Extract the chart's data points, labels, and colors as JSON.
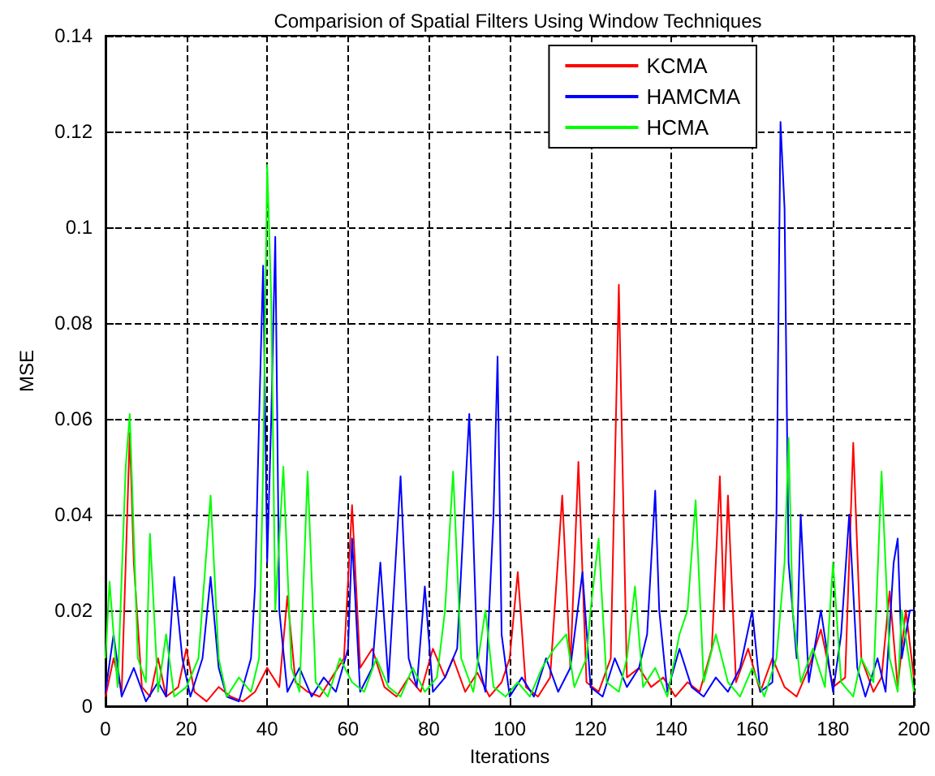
{
  "chart_data": {
    "type": "line",
    "title": "Comparision of Spatial Filters Using Window Techniques",
    "xlabel": "Iterations",
    "ylabel": "MSE",
    "xlim": [
      0,
      200
    ],
    "xticks": [
      0,
      20,
      40,
      60,
      80,
      100,
      120,
      140,
      160,
      180,
      200
    ],
    "ylim": [
      0,
      0.14
    ],
    "yticks": [
      0,
      0.02,
      0.04,
      0.06,
      0.08,
      0.1,
      0.12,
      0.14
    ],
    "grid": true,
    "legend": "top right",
    "line_style": "solid",
    "series": [
      {
        "name": "KCMA",
        "color": "#ff0000",
        "x": [
          0,
          2,
          4,
          6,
          7,
          9,
          11,
          13,
          15,
          18,
          20,
          22,
          25,
          28,
          31,
          34,
          37,
          40,
          43,
          45,
          47,
          50,
          53,
          56,
          59,
          61,
          63,
          66,
          69,
          72,
          75,
          78,
          81,
          84,
          86,
          89,
          92,
          95,
          98,
          100,
          102,
          104,
          107,
          110,
          113,
          115,
          117,
          119,
          122,
          125,
          127,
          129,
          132,
          135,
          138,
          141,
          144,
          147,
          150,
          152,
          153,
          154,
          156,
          159,
          162,
          165,
          168,
          171,
          174,
          177,
          180,
          183,
          185,
          187,
          190,
          192,
          194,
          196,
          198,
          200
        ],
        "values": [
          0.002,
          0.01,
          0.003,
          0.057,
          0.03,
          0.004,
          0.002,
          0.01,
          0.002,
          0.004,
          0.012,
          0.003,
          0.001,
          0.004,
          0.002,
          0.001,
          0.003,
          0.008,
          0.004,
          0.023,
          0.005,
          0.003,
          0.002,
          0.006,
          0.01,
          0.042,
          0.008,
          0.012,
          0.004,
          0.002,
          0.006,
          0.003,
          0.012,
          0.006,
          0.01,
          0.003,
          0.007,
          0.002,
          0.005,
          0.01,
          0.028,
          0.004,
          0.002,
          0.006,
          0.044,
          0.008,
          0.051,
          0.005,
          0.003,
          0.01,
          0.088,
          0.006,
          0.008,
          0.004,
          0.006,
          0.002,
          0.005,
          0.003,
          0.012,
          0.048,
          0.02,
          0.044,
          0.005,
          0.012,
          0.003,
          0.01,
          0.004,
          0.002,
          0.008,
          0.016,
          0.004,
          0.006,
          0.055,
          0.01,
          0.003,
          0.006,
          0.024,
          0.004,
          0.02,
          0.006
        ]
      },
      {
        "name": "HAMCMA",
        "color": "#0000ff",
        "x": [
          0,
          2,
          4,
          7,
          10,
          13,
          15,
          17,
          19,
          21,
          24,
          26,
          28,
          30,
          33,
          36,
          37,
          38,
          39,
          40,
          41,
          42,
          43,
          45,
          48,
          51,
          54,
          57,
          60,
          61,
          63,
          66,
          68,
          70,
          73,
          75,
          77,
          79,
          81,
          84,
          87,
          89,
          90,
          92,
          94,
          96,
          97,
          98,
          100,
          103,
          106,
          109,
          112,
          115,
          118,
          120,
          123,
          126,
          129,
          132,
          134,
          136,
          137,
          139,
          142,
          145,
          148,
          151,
          154,
          157,
          160,
          162,
          165,
          166,
          167,
          168,
          169,
          171,
          172,
          174,
          177,
          180,
          182,
          184,
          186,
          188,
          191,
          193,
          195,
          196,
          197,
          199,
          200
        ],
        "values": [
          0.003,
          0.015,
          0.002,
          0.008,
          0.001,
          0.005,
          0.002,
          0.027,
          0.01,
          0.002,
          0.01,
          0.027,
          0.008,
          0.002,
          0.001,
          0.01,
          0.025,
          0.06,
          0.092,
          0.03,
          0.06,
          0.098,
          0.02,
          0.003,
          0.008,
          0.002,
          0.006,
          0.003,
          0.012,
          0.035,
          0.003,
          0.008,
          0.03,
          0.005,
          0.048,
          0.01,
          0.004,
          0.025,
          0.003,
          0.006,
          0.012,
          0.045,
          0.061,
          0.01,
          0.003,
          0.04,
          0.073,
          0.015,
          0.002,
          0.006,
          0.002,
          0.01,
          0.003,
          0.008,
          0.028,
          0.004,
          0.002,
          0.01,
          0.004,
          0.008,
          0.015,
          0.045,
          0.02,
          0.003,
          0.012,
          0.004,
          0.002,
          0.006,
          0.003,
          0.008,
          0.02,
          0.003,
          0.005,
          0.04,
          0.122,
          0.104,
          0.03,
          0.01,
          0.04,
          0.005,
          0.02,
          0.003,
          0.015,
          0.04,
          0.008,
          0.002,
          0.01,
          0.003,
          0.03,
          0.035,
          0.01,
          0.02,
          0.02
        ]
      },
      {
        "name": "HCMA",
        "color": "#00ff00",
        "x": [
          0,
          1,
          3,
          5,
          6,
          8,
          10,
          11,
          13,
          15,
          17,
          20,
          23,
          26,
          28,
          30,
          33,
          36,
          38,
          39,
          40,
          41,
          42,
          44,
          46,
          48,
          50,
          52,
          55,
          58,
          61,
          64,
          67,
          70,
          73,
          76,
          79,
          82,
          84,
          86,
          88,
          91,
          94,
          96,
          99,
          102,
          105,
          108,
          111,
          114,
          116,
          119,
          120,
          122,
          124,
          127,
          129,
          131,
          133,
          136,
          139,
          142,
          144,
          146,
          148,
          151,
          154,
          157,
          160,
          163,
          166,
          168,
          169,
          170,
          172,
          175,
          178,
          180,
          182,
          185,
          187,
          190,
          192,
          194,
          196,
          197,
          200
        ],
        "values": [
          0.01,
          0.026,
          0.004,
          0.05,
          0.061,
          0.01,
          0.005,
          0.036,
          0.003,
          0.015,
          0.002,
          0.004,
          0.01,
          0.044,
          0.01,
          0.002,
          0.006,
          0.003,
          0.01,
          0.05,
          0.113,
          0.085,
          0.02,
          0.05,
          0.008,
          0.003,
          0.049,
          0.005,
          0.002,
          0.01,
          0.005,
          0.003,
          0.01,
          0.004,
          0.002,
          0.008,
          0.003,
          0.006,
          0.02,
          0.049,
          0.01,
          0.003,
          0.02,
          0.004,
          0.002,
          0.005,
          0.002,
          0.008,
          0.012,
          0.015,
          0.004,
          0.01,
          0.02,
          0.035,
          0.005,
          0.003,
          0.01,
          0.025,
          0.004,
          0.008,
          0.002,
          0.015,
          0.02,
          0.043,
          0.005,
          0.015,
          0.005,
          0.002,
          0.008,
          0.002,
          0.01,
          0.03,
          0.056,
          0.02,
          0.005,
          0.012,
          0.004,
          0.03,
          0.005,
          0.002,
          0.01,
          0.005,
          0.049,
          0.01,
          0.003,
          0.02,
          0.003
        ]
      }
    ]
  }
}
